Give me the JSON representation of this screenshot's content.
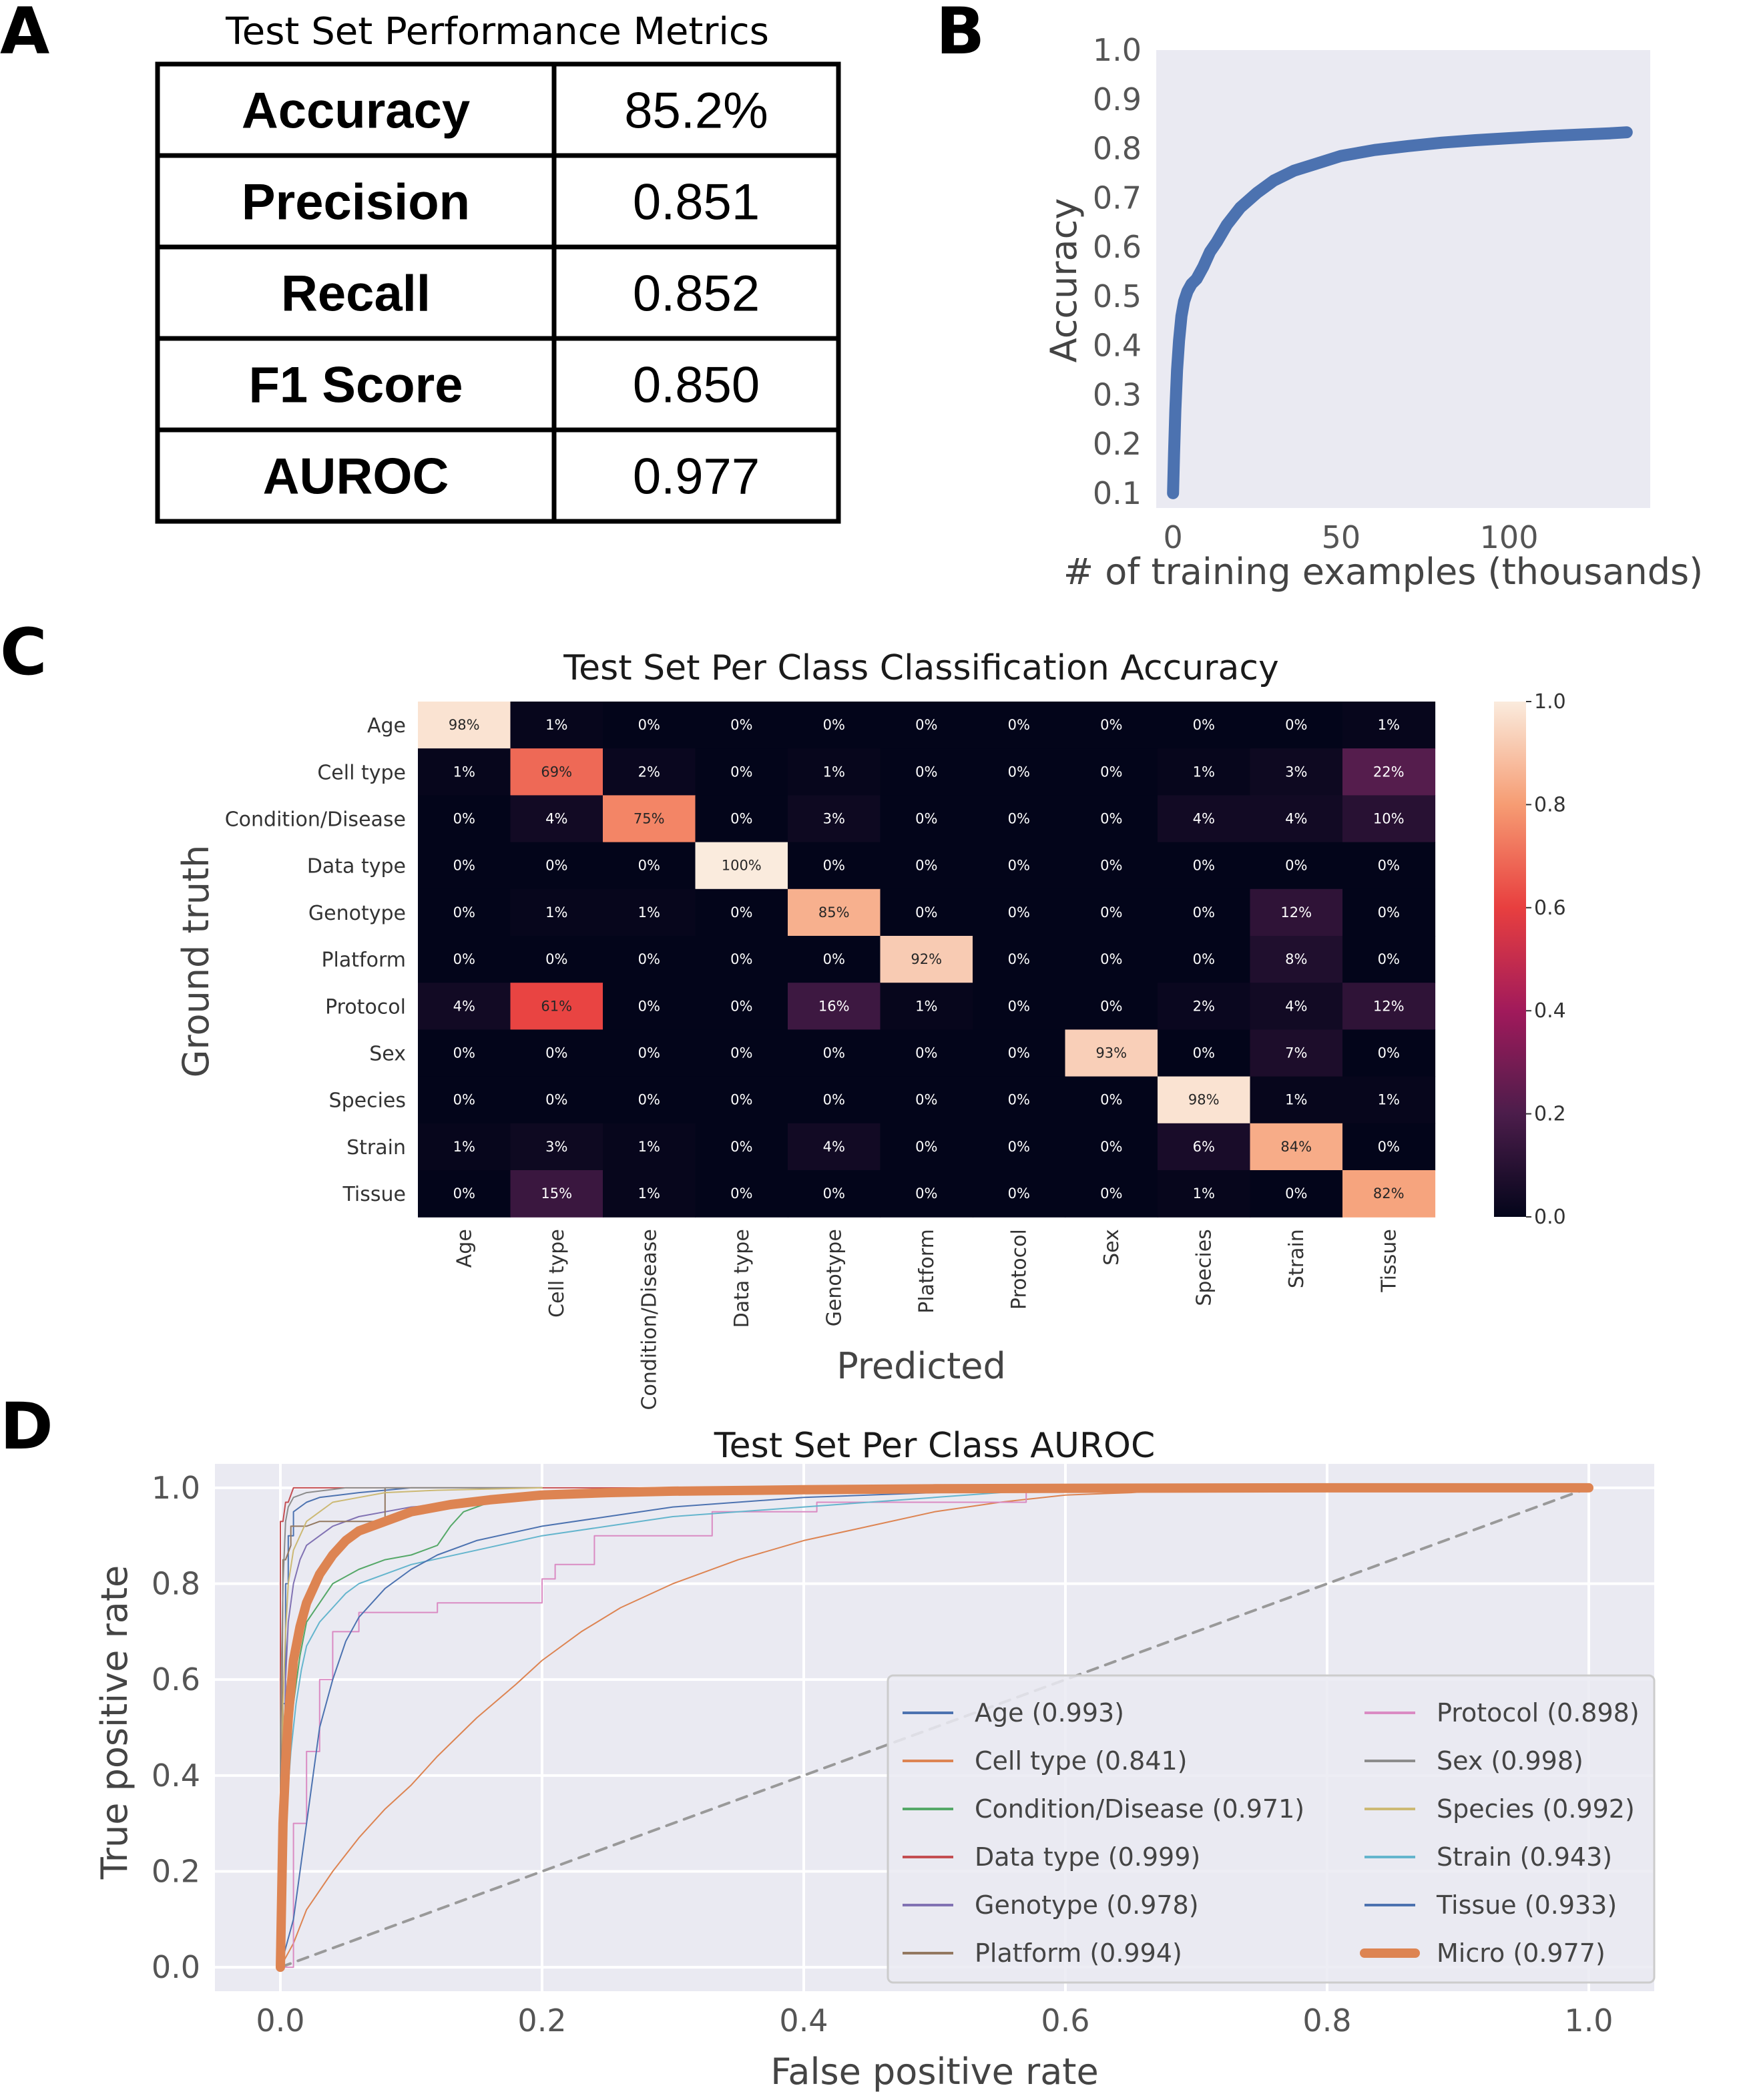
{
  "panels": {
    "a": "A",
    "b": "B",
    "c": "C",
    "d": "D"
  },
  "colors": {
    "plot_bg": "#eaeaf2",
    "grid": "#ffffff",
    "accuracy_line": "#4c72b0",
    "heatmap_scale": [
      "#03051a",
      "#4c1d4b",
      "#a11a5b",
      "#e83f3f",
      "#f69c73",
      "#faebdd"
    ],
    "diagonal": "#999999"
  },
  "chart_data": [
    {
      "id": "A",
      "type": "table",
      "title": "Test Set Performance Metrics",
      "rows": [
        {
          "metric": "Accuracy",
          "value": "85.2%"
        },
        {
          "metric": "Precision",
          "value": "0.851"
        },
        {
          "metric": "Recall",
          "value": "0.852"
        },
        {
          "metric": "F1 Score",
          "value": "0.850"
        },
        {
          "metric": "AUROC",
          "value": "0.977"
        }
      ]
    },
    {
      "id": "B",
      "type": "line",
      "title": "",
      "xlabel": "# of training examples (thousands)",
      "ylabel": "Accuracy",
      "xlim": [
        -5,
        142
      ],
      "ylim": [
        0.07,
        1.0
      ],
      "xticks": [
        0,
        50,
        100
      ],
      "yticks": [
        0.1,
        0.2,
        0.3,
        0.4,
        0.5,
        0.6,
        0.7,
        0.8,
        0.9,
        1.0
      ],
      "grid": false,
      "x": [
        0,
        0.3,
        0.7,
        1.2,
        1.8,
        2.5,
        3.3,
        4.3,
        5.5,
        7,
        9,
        11,
        13,
        16,
        20,
        25,
        30,
        36,
        43,
        50,
        60,
        70,
        80,
        90,
        100,
        110,
        120,
        130,
        135
      ],
      "y": [
        0.1,
        0.18,
        0.27,
        0.35,
        0.41,
        0.46,
        0.49,
        0.51,
        0.525,
        0.535,
        0.56,
        0.59,
        0.61,
        0.645,
        0.68,
        0.71,
        0.735,
        0.755,
        0.77,
        0.785,
        0.797,
        0.805,
        0.812,
        0.817,
        0.821,
        0.825,
        0.828,
        0.831,
        0.833
      ]
    },
    {
      "id": "C",
      "type": "heatmap",
      "title": "Test Set Per Class Classification Accuracy",
      "xlabel": "Predicted",
      "ylabel": "Ground truth",
      "rows": [
        "Age",
        "Cell type",
        "Condition/Disease",
        "Data type",
        "Genotype",
        "Platform",
        "Protocol",
        "Sex",
        "Species",
        "Strain",
        "Tissue"
      ],
      "cols": [
        "Age",
        "Cell type",
        "Condition/Disease",
        "Data type",
        "Genotype",
        "Platform",
        "Protocol",
        "Sex",
        "Species",
        "Strain",
        "Tissue"
      ],
      "values": [
        [
          98,
          1,
          0,
          0,
          0,
          0,
          0,
          0,
          0,
          0,
          1
        ],
        [
          1,
          69,
          2,
          0,
          1,
          0,
          0,
          0,
          1,
          3,
          22
        ],
        [
          0,
          4,
          75,
          0,
          3,
          0,
          0,
          0,
          4,
          4,
          10
        ],
        [
          0,
          0,
          0,
          100,
          0,
          0,
          0,
          0,
          0,
          0,
          0
        ],
        [
          0,
          1,
          1,
          0,
          85,
          0,
          0,
          0,
          0,
          12,
          0
        ],
        [
          0,
          0,
          0,
          0,
          0,
          92,
          0,
          0,
          0,
          8,
          0
        ],
        [
          4,
          61,
          0,
          0,
          16,
          1,
          0,
          0,
          2,
          4,
          12
        ],
        [
          0,
          0,
          0,
          0,
          0,
          0,
          0,
          93,
          0,
          7,
          0
        ],
        [
          0,
          0,
          0,
          0,
          0,
          0,
          0,
          0,
          98,
          1,
          1
        ],
        [
          1,
          3,
          1,
          0,
          4,
          0,
          0,
          0,
          6,
          84,
          0
        ],
        [
          0,
          15,
          1,
          0,
          0,
          0,
          0,
          0,
          1,
          0,
          82
        ]
      ],
      "colorbar_ticks": [
        "1.0",
        "0.8",
        "0.6",
        "0.4",
        "0.2",
        "0.0"
      ]
    },
    {
      "id": "D",
      "type": "line",
      "title": "Test Set Per Class AUROC",
      "xlabel": "False positive rate",
      "ylabel": "True positive rate",
      "xlim": [
        -0.05,
        1.05
      ],
      "ylim": [
        -0.05,
        1.05
      ],
      "xticks": [
        "0.0",
        "0.2",
        "0.4",
        "0.6",
        "0.8",
        "1.0"
      ],
      "yticks": [
        "0.0",
        "0.2",
        "0.4",
        "0.6",
        "0.8",
        "1.0"
      ],
      "grid": true,
      "legend_position": "lower-right",
      "series": [
        {
          "name": "Age (0.993)",
          "color": "#4c72b0",
          "width": 2,
          "x": [
            0,
            0.002,
            0.002,
            0.004,
            0.004,
            0.006,
            0.006,
            0.01,
            0.01,
            0.02,
            0.03,
            0.06,
            0.1,
            0.2
          ],
          "y": [
            0,
            0.3,
            0.55,
            0.55,
            0.8,
            0.8,
            0.9,
            0.9,
            0.95,
            0.97,
            0.98,
            0.99,
            1.0,
            1.0
          ]
        },
        {
          "name": "Cell type (0.841)",
          "color": "#dd8452",
          "width": 2,
          "x": [
            0,
            0.01,
            0.02,
            0.04,
            0.06,
            0.08,
            0.1,
            0.12,
            0.15,
            0.18,
            0.2,
            0.23,
            0.26,
            0.3,
            0.35,
            0.4,
            0.45,
            0.5,
            0.55,
            0.6,
            0.65,
            0.7,
            1.0
          ],
          "y": [
            0,
            0.05,
            0.12,
            0.2,
            0.27,
            0.33,
            0.38,
            0.44,
            0.52,
            0.59,
            0.64,
            0.7,
            0.75,
            0.8,
            0.85,
            0.89,
            0.92,
            0.95,
            0.97,
            0.985,
            0.99,
            1.0,
            1.0
          ]
        },
        {
          "name": "Condition/Disease (0.971)",
          "color": "#55a868",
          "width": 2,
          "x": [
            0,
            0.003,
            0.006,
            0.01,
            0.015,
            0.02,
            0.03,
            0.04,
            0.06,
            0.08,
            0.1,
            0.12,
            0.13,
            0.14,
            0.16,
            0.2,
            0.4
          ],
          "y": [
            0,
            0.3,
            0.45,
            0.55,
            0.65,
            0.72,
            0.76,
            0.8,
            0.83,
            0.85,
            0.86,
            0.88,
            0.92,
            0.95,
            0.97,
            0.98,
            1.0
          ]
        },
        {
          "name": "Data type (0.999)",
          "color": "#c44e52",
          "width": 2,
          "x": [
            0,
            0,
            0.002,
            0.004,
            0.006,
            0.01,
            0.03,
            0.1,
            0.2,
            0.3
          ],
          "y": [
            0,
            0.93,
            0.93,
            0.97,
            0.97,
            1.0,
            1.0,
            1.0,
            1.0,
            1.0
          ]
        },
        {
          "name": "Genotype (0.978)",
          "color": "#8172b3",
          "width": 2,
          "x": [
            0,
            0.002,
            0.004,
            0.006,
            0.01,
            0.015,
            0.02,
            0.03,
            0.04,
            0.06,
            0.08,
            0.1,
            0.15,
            0.2,
            0.4
          ],
          "y": [
            0,
            0.35,
            0.6,
            0.72,
            0.8,
            0.85,
            0.88,
            0.9,
            0.92,
            0.94,
            0.95,
            0.96,
            0.97,
            0.98,
            1.0
          ]
        },
        {
          "name": "Platform (0.994)",
          "color": "#937860",
          "width": 2,
          "x": [
            0,
            0.002,
            0.004,
            0.008,
            0.008,
            0.01,
            0.02,
            0.03,
            0.04,
            0.05,
            0.06,
            0.08,
            0.08,
            0.1,
            0.2
          ],
          "y": [
            0,
            0.85,
            0.85,
            0.88,
            0.92,
            0.92,
            0.92,
            0.93,
            0.93,
            0.93,
            0.93,
            0.93,
            1.0,
            1.0,
            1.0
          ]
        },
        {
          "name": "Protocol (0.898)",
          "color": "#da8bc3",
          "width": 2,
          "x": [
            0,
            0.01,
            0.01,
            0.02,
            0.02,
            0.03,
            0.03,
            0.04,
            0.04,
            0.06,
            0.06,
            0.08,
            0.08,
            0.12,
            0.12,
            0.2,
            0.2,
            0.21,
            0.21,
            0.24,
            0.24,
            0.33,
            0.33,
            0.41,
            0.41,
            0.57,
            0.57,
            0.6,
            1.0
          ],
          "y": [
            0,
            0.0,
            0.3,
            0.3,
            0.45,
            0.45,
            0.6,
            0.6,
            0.7,
            0.7,
            0.74,
            0.74,
            0.74,
            0.74,
            0.76,
            0.76,
            0.81,
            0.81,
            0.84,
            0.84,
            0.9,
            0.9,
            0.95,
            0.95,
            0.97,
            0.97,
            1.0,
            1.0,
            1.0
          ]
        },
        {
          "name": "Sex (0.998)",
          "color": "#8c8c8c",
          "width": 2,
          "x": [
            0,
            0,
            0.002,
            0.004,
            0.006,
            0.01,
            0.02,
            0.05,
            0.08,
            0.1,
            0.2
          ],
          "y": [
            0,
            0.5,
            0.8,
            0.93,
            0.96,
            0.98,
            0.99,
            1.0,
            1.0,
            1.0,
            1.0
          ]
        },
        {
          "name": "Species (0.992)",
          "color": "#ccb974",
          "width": 2,
          "x": [
            0,
            0.002,
            0.004,
            0.006,
            0.01,
            0.015,
            0.02,
            0.03,
            0.04,
            0.06,
            0.08,
            0.12,
            0.2
          ],
          "y": [
            0,
            0.55,
            0.7,
            0.8,
            0.87,
            0.9,
            0.93,
            0.95,
            0.97,
            0.98,
            0.99,
            0.995,
            1.0
          ]
        },
        {
          "name": "Strain (0.943)",
          "color": "#64b5cd",
          "width": 2,
          "x": [
            0,
            0.004,
            0.008,
            0.012,
            0.016,
            0.02,
            0.03,
            0.04,
            0.05,
            0.06,
            0.08,
            0.1,
            0.15,
            0.2,
            0.25,
            0.3,
            0.4,
            0.5,
            0.6
          ],
          "y": [
            0,
            0.3,
            0.45,
            0.55,
            0.62,
            0.67,
            0.72,
            0.75,
            0.78,
            0.8,
            0.82,
            0.84,
            0.87,
            0.9,
            0.92,
            0.94,
            0.96,
            0.98,
            1.0
          ]
        },
        {
          "name": "Tissue (0.933)",
          "color": "#4c72b0",
          "width": 2,
          "x": [
            0,
            0.01,
            0.015,
            0.02,
            0.025,
            0.03,
            0.04,
            0.05,
            0.06,
            0.08,
            0.1,
            0.12,
            0.15,
            0.2,
            0.25,
            0.3,
            0.4,
            0.5,
            0.6
          ],
          "y": [
            0,
            0.1,
            0.2,
            0.3,
            0.4,
            0.5,
            0.6,
            0.68,
            0.73,
            0.79,
            0.83,
            0.86,
            0.89,
            0.92,
            0.94,
            0.96,
            0.98,
            0.99,
            1.0
          ]
        },
        {
          "name": "Micro (0.977)",
          "color": "#dd8452",
          "width": 14,
          "x": [
            0,
            0.002,
            0.004,
            0.006,
            0.008,
            0.01,
            0.015,
            0.02,
            0.03,
            0.04,
            0.05,
            0.06,
            0.08,
            0.1,
            0.13,
            0.16,
            0.2,
            0.25,
            0.3,
            0.4,
            0.5,
            0.6,
            0.8,
            1.0
          ],
          "y": [
            0,
            0.3,
            0.42,
            0.52,
            0.58,
            0.64,
            0.71,
            0.76,
            0.82,
            0.86,
            0.89,
            0.91,
            0.93,
            0.95,
            0.965,
            0.975,
            0.985,
            0.99,
            0.993,
            0.996,
            0.998,
            0.999,
            1.0,
            1.0
          ]
        },
        {
          "name": "",
          "color": "#999999",
          "width": 4,
          "dashed": true,
          "x": [
            0,
            1
          ],
          "y": [
            0,
            1
          ]
        }
      ]
    }
  ]
}
